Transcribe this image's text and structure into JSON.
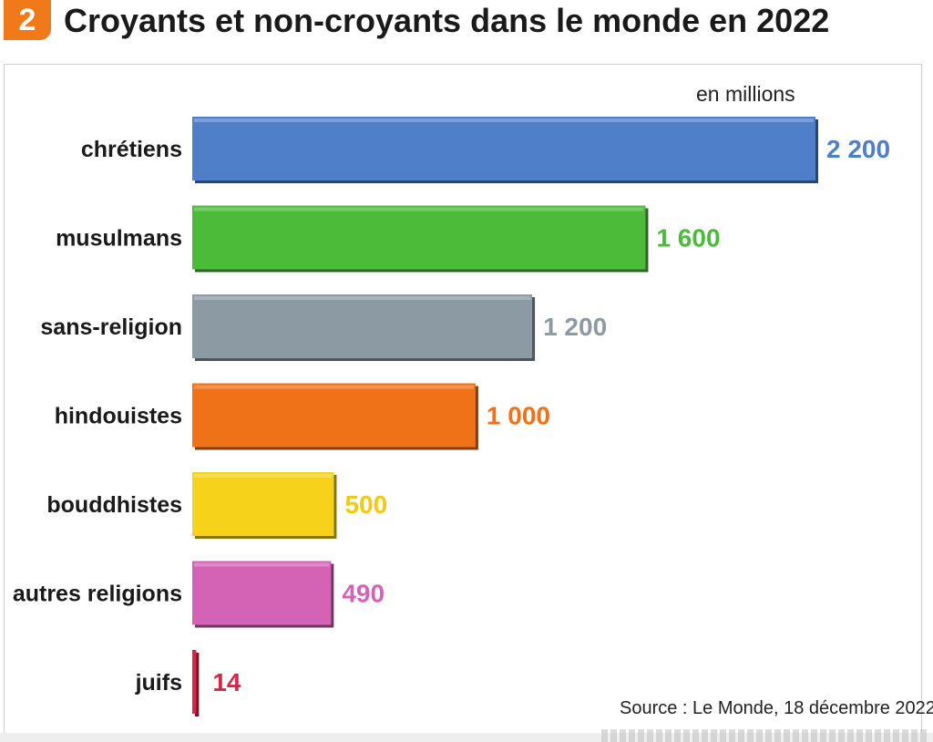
{
  "header": {
    "badge": "2",
    "title": "Croyants et non-croyants dans le monde en 2022"
  },
  "units_label": "en millions",
  "source": "Source : Le Monde, 18 décembre 2022.",
  "chart_data": {
    "type": "bar",
    "orientation": "horizontal",
    "title": "Croyants et non-croyants dans le monde en 2022",
    "unit": "en millions",
    "categories": [
      "chrétiens",
      "musulmans",
      "sans-religion",
      "hindouistes",
      "bouddhistes",
      "autres religions",
      "juifs"
    ],
    "values": [
      2200,
      1600,
      1200,
      1000,
      500,
      490,
      14
    ],
    "value_labels": [
      "2 200",
      "1 600",
      "1 200",
      "1 000",
      "500",
      "490",
      "14"
    ],
    "colors": [
      "#4f7fc8",
      "#4cbb3a",
      "#8c9aa3",
      "#ef7118",
      "#f6d21b",
      "#d463b6",
      "#d8254a"
    ],
    "label_colors": [
      "#4f7fc8",
      "#4cbb3a",
      "#8c9aa3",
      "#ef7118",
      "#f3c816",
      "#d463b6",
      "#d8254a"
    ],
    "xlim": [
      0,
      2200
    ],
    "grid": false,
    "legend": "none"
  }
}
